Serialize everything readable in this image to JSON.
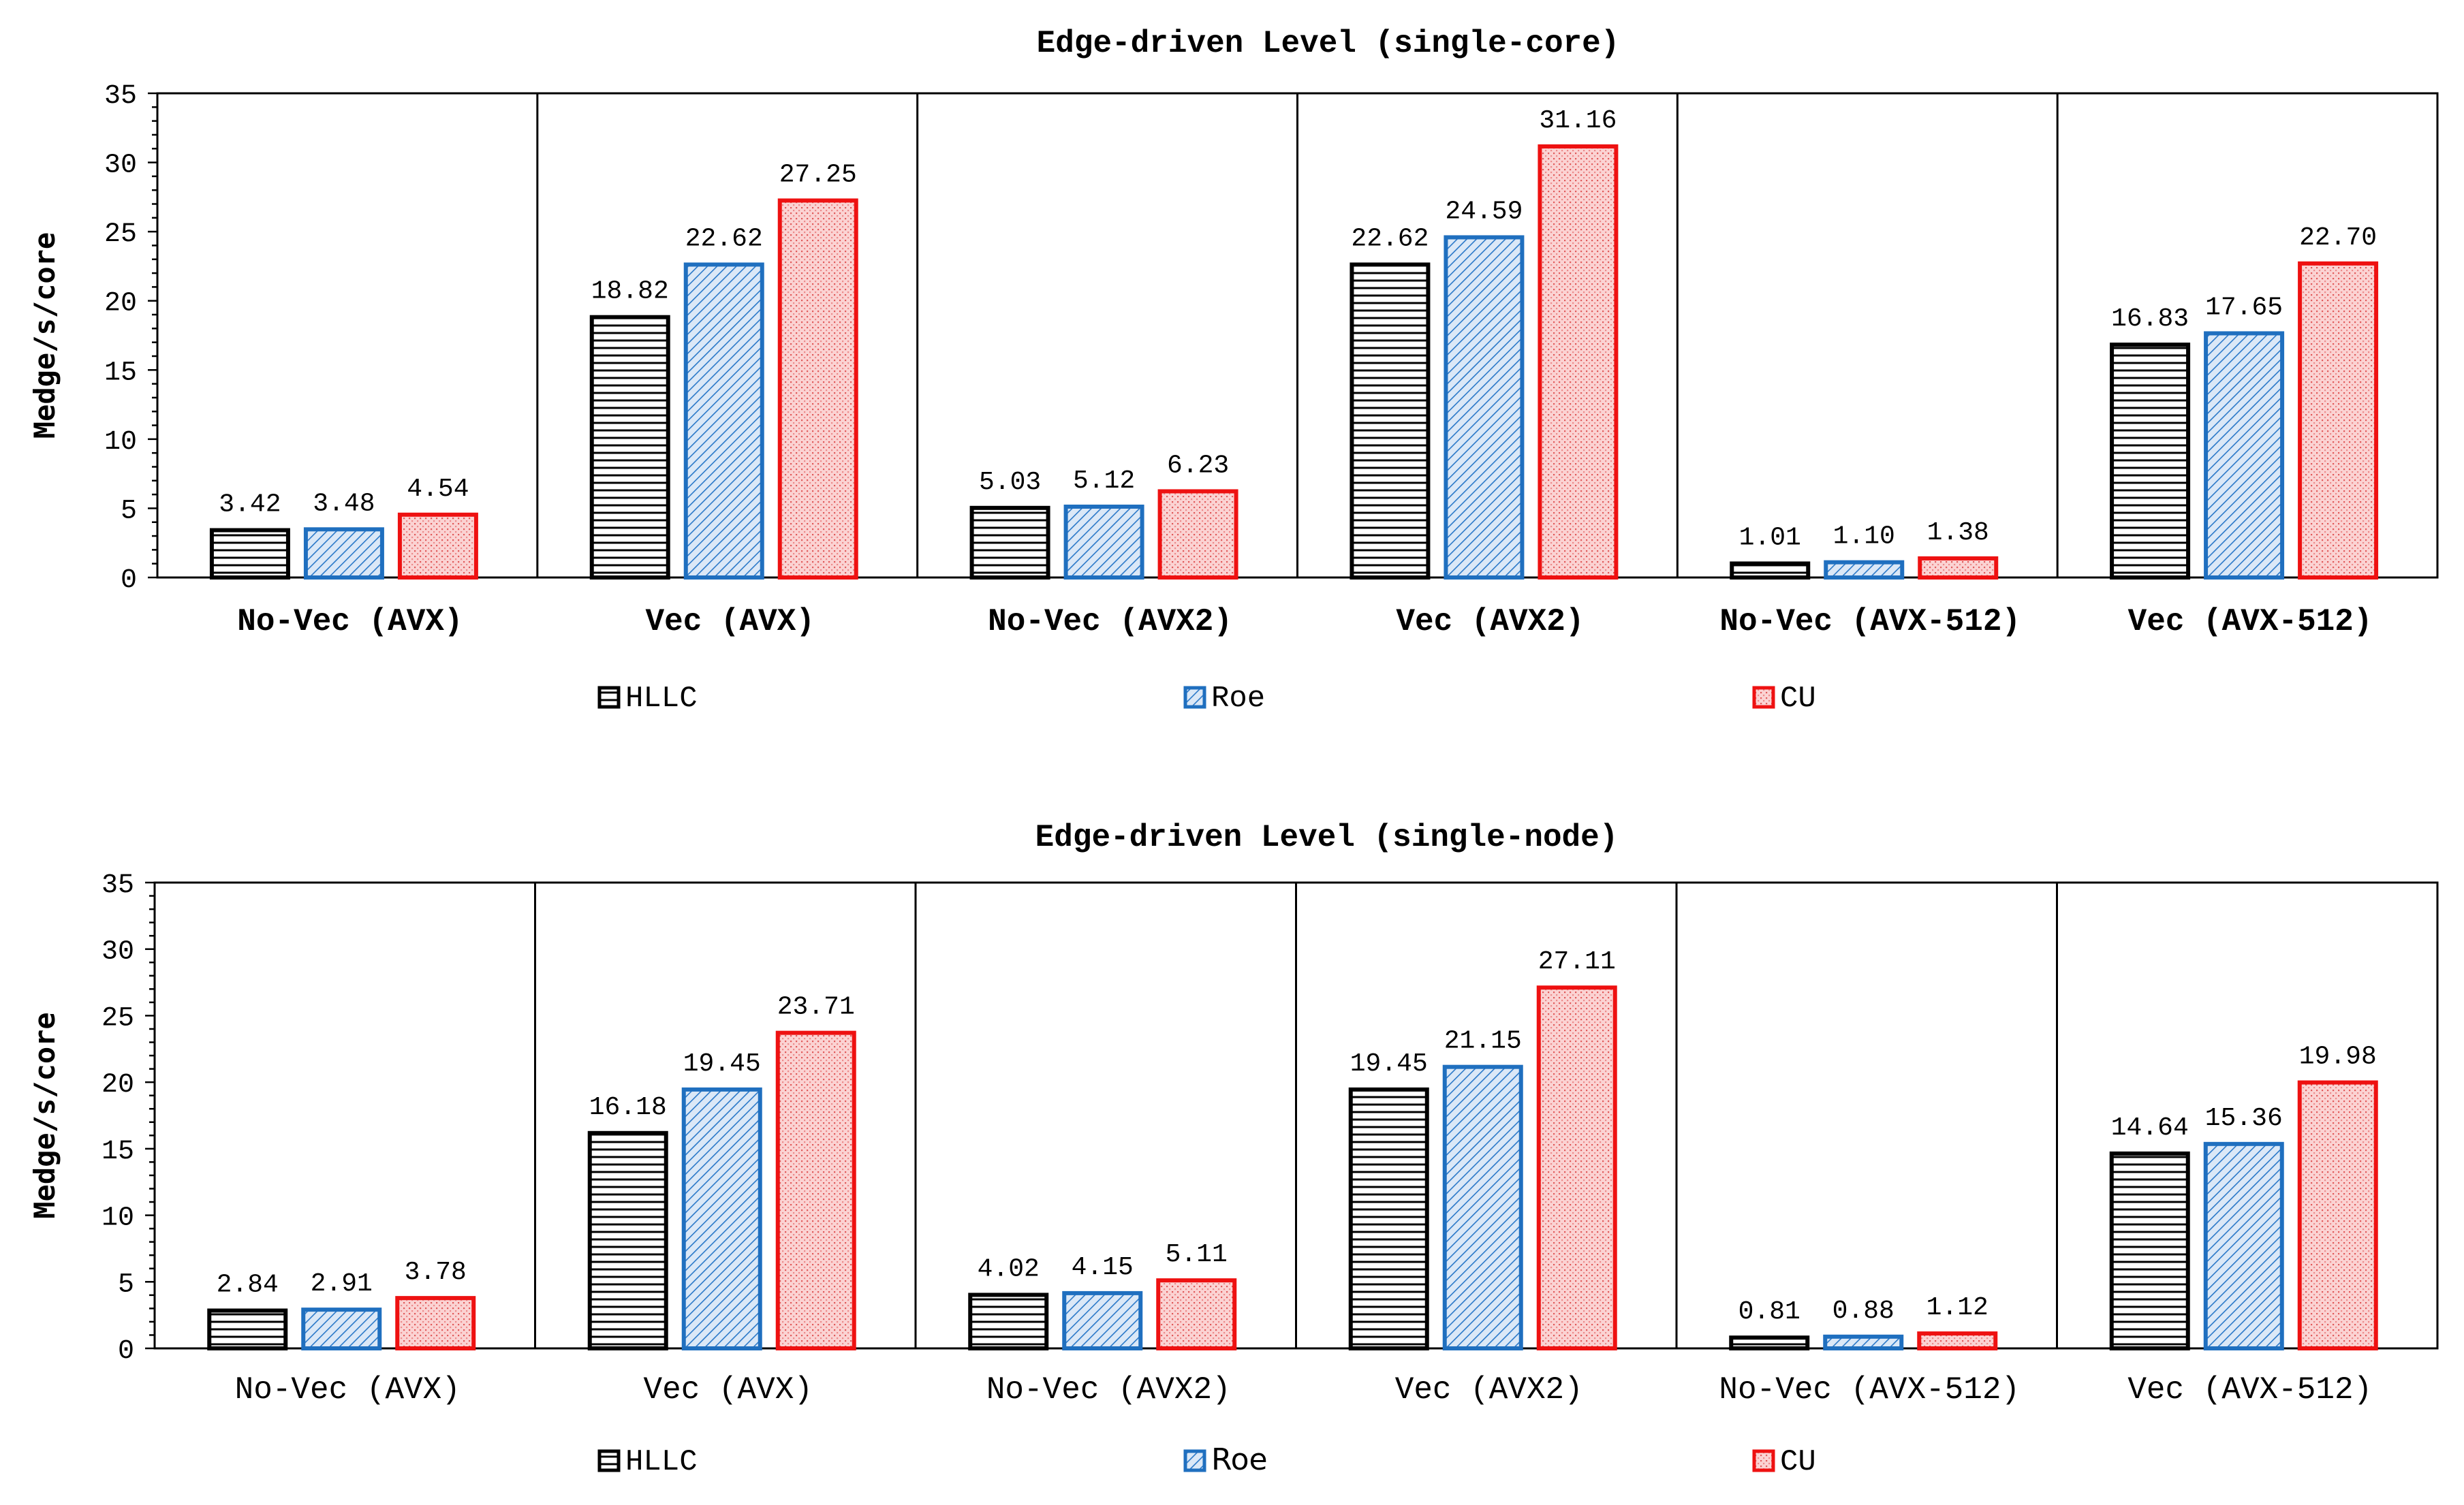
{
  "chart_data": [
    {
      "type": "bar",
      "title": "Edge-driven Level (single-core)",
      "ylabel": "Medge/s/core",
      "xlabel": "",
      "ylim": [
        0,
        35
      ],
      "yticks": [
        0,
        5,
        10,
        15,
        20,
        25,
        30,
        35
      ],
      "categories": [
        "No-Vec (AVX)",
        "Vec (AVX)",
        "No-Vec (AVX2)",
        "Vec (AVX2)",
        "No-Vec (AVX-512)",
        "Vec (AVX-512)"
      ],
      "series": [
        {
          "name": "HLLC",
          "values": [
            3.42,
            18.82,
            5.03,
            22.62,
            1.01,
            16.83
          ],
          "labels": [
            "3.42",
            "18.82",
            "5.03",
            "22.62",
            "1.01",
            "16.83"
          ],
          "color": "#000000",
          "fill": "#ffffff",
          "pattern": "horizontal-lines"
        },
        {
          "name": "Roe",
          "values": [
            3.48,
            22.62,
            5.12,
            24.59,
            1.1,
            17.65
          ],
          "labels": [
            "3.48",
            "22.62",
            "5.12",
            "24.59",
            "1.10",
            "17.65"
          ],
          "color": "#1f6fbf",
          "fill": "#cfe0f5",
          "pattern": "diagonal-lines"
        },
        {
          "name": "CU",
          "values": [
            4.54,
            27.25,
            6.23,
            31.16,
            1.38,
            22.7
          ],
          "labels": [
            "4.54",
            "27.25",
            "6.23",
            "31.16",
            "1.38",
            "22.70"
          ],
          "color": "#ee1111",
          "fill": "#f8c8c8",
          "pattern": "dotted-grid"
        }
      ],
      "category_label_bold": true,
      "legend": "bottom",
      "grid": false
    },
    {
      "type": "bar",
      "title": "Edge-driven Level (single-node)",
      "ylabel": "Medge/s/core",
      "xlabel": "",
      "ylim": [
        0,
        35
      ],
      "yticks": [
        0,
        5,
        10,
        15,
        20,
        25,
        30,
        35
      ],
      "categories": [
        "No-Vec (AVX)",
        "Vec (AVX)",
        "No-Vec (AVX2)",
        "Vec (AVX2)",
        "No-Vec (AVX-512)",
        "Vec (AVX-512)"
      ],
      "series": [
        {
          "name": "HLLC",
          "values": [
            2.84,
            16.18,
            4.02,
            19.45,
            0.81,
            14.64
          ],
          "labels": [
            "2.84",
            "16.18",
            "4.02",
            "19.45",
            "0.81",
            "14.64"
          ],
          "color": "#000000",
          "fill": "#ffffff",
          "pattern": "horizontal-lines"
        },
        {
          "name": "Roe",
          "values": [
            2.91,
            19.45,
            4.15,
            21.15,
            0.88,
            15.36
          ],
          "labels": [
            "2.91",
            "19.45",
            "4.15",
            "21.15",
            "0.88",
            "15.36"
          ],
          "color": "#1f6fbf",
          "fill": "#cfe0f5",
          "pattern": "diagonal-lines"
        },
        {
          "name": "CU",
          "values": [
            3.78,
            23.71,
            5.11,
            27.11,
            1.12,
            19.98
          ],
          "labels": [
            "3.78",
            "23.71",
            "5.11",
            "27.11",
            "1.12",
            "19.98"
          ],
          "color": "#ee1111",
          "fill": "#f8c8c8",
          "pattern": "dotted-grid"
        }
      ],
      "category_label_bold": false,
      "legend": "bottom",
      "grid": false
    }
  ]
}
